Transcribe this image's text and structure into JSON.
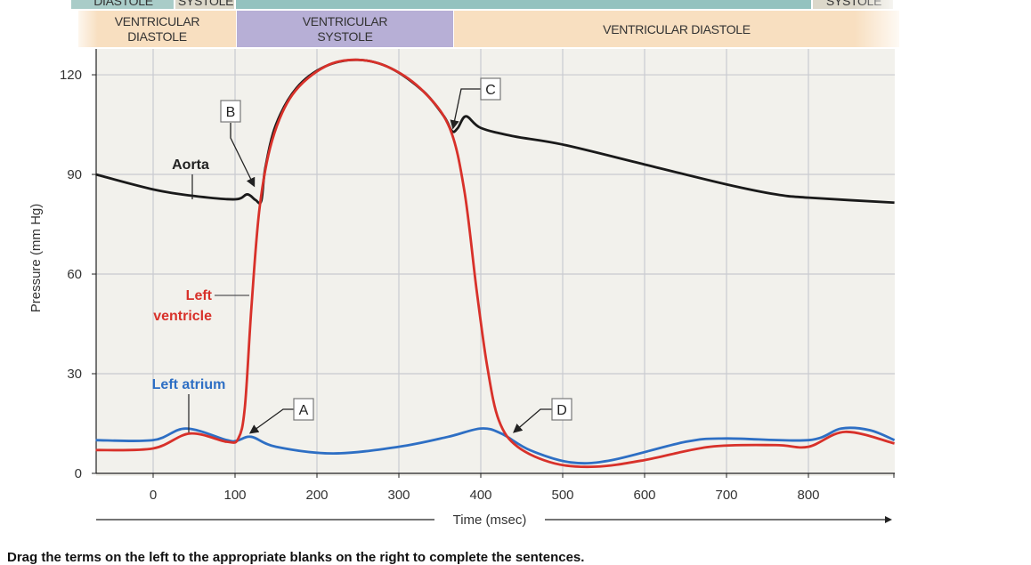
{
  "phases": {
    "atrial": [
      {
        "label": "DIASTOLE",
        "color": "#a9ccc8"
      },
      {
        "label": "SYSTOLE",
        "color": "#dcd8ca"
      },
      {
        "label": "",
        "color": "#94c2bf"
      },
      {
        "label": "SYSTOLE",
        "color": "#dcd8ca"
      }
    ],
    "ventricular": [
      {
        "line1": "VENTRICULAR",
        "line2": "DIASTOLE",
        "color": "#f8dfc0"
      },
      {
        "line1": "VENTRICULAR",
        "line2": "SYSTOLE",
        "color": "#b7afd6"
      },
      {
        "line1": "VENTRICULAR DIASTOLE",
        "line2": "",
        "color": "#f8dfc0"
      }
    ]
  },
  "chart_data": {
    "type": "line",
    "xlabel": "Time (msec)",
    "ylabel": "Pressure (mm Hg)",
    "xlim": [
      -70,
      905
    ],
    "ylim": [
      0,
      128
    ],
    "xticks": [
      0,
      100,
      200,
      300,
      400,
      500,
      600,
      700,
      800
    ],
    "yticks": [
      0,
      30,
      60,
      90,
      120
    ],
    "grid": true,
    "series": [
      {
        "name": "Aorta",
        "color": "#1a1a1a",
        "label_lines": [
          "Aorta"
        ],
        "points": [
          [
            -70,
            90
          ],
          [
            0,
            85.5
          ],
          [
            50,
            83.5
          ],
          [
            100,
            82.5
          ],
          [
            115,
            84
          ],
          [
            125,
            82.3
          ],
          [
            132,
            82
          ],
          [
            137,
            92
          ],
          [
            150,
            105
          ],
          [
            175,
            116
          ],
          [
            210,
            122.5
          ],
          [
            250,
            124.5
          ],
          [
            290,
            122
          ],
          [
            330,
            115
          ],
          [
            355,
            107.5
          ],
          [
            365,
            103
          ],
          [
            372,
            104
          ],
          [
            382,
            107.5
          ],
          [
            400,
            104
          ],
          [
            440,
            101.5
          ],
          [
            500,
            99
          ],
          [
            600,
            93
          ],
          [
            700,
            87
          ],
          [
            760,
            84
          ],
          [
            800,
            83
          ],
          [
            905,
            81.5
          ]
        ]
      },
      {
        "name": "Left ventricle",
        "color": "#d8312a",
        "label_lines": [
          "Left",
          "ventricle"
        ],
        "points": [
          [
            -70,
            7
          ],
          [
            0,
            7.5
          ],
          [
            45,
            12
          ],
          [
            90,
            9.5
          ],
          [
            104,
            10.5
          ],
          [
            112,
            20
          ],
          [
            120,
            50
          ],
          [
            130,
            80
          ],
          [
            145,
            100
          ],
          [
            170,
            114
          ],
          [
            210,
            122.5
          ],
          [
            250,
            124.5
          ],
          [
            290,
            122
          ],
          [
            330,
            115
          ],
          [
            362,
            104
          ],
          [
            380,
            85
          ],
          [
            395,
            55
          ],
          [
            408,
            32
          ],
          [
            422,
            16
          ],
          [
            445,
            8
          ],
          [
            490,
            3
          ],
          [
            540,
            2
          ],
          [
            600,
            4
          ],
          [
            680,
            8
          ],
          [
            760,
            8.5
          ],
          [
            800,
            8
          ],
          [
            845,
            12.5
          ],
          [
            905,
            9
          ]
        ]
      },
      {
        "name": "Left atrium",
        "color": "#2e6fc4",
        "label_lines": [
          "Left atrium"
        ],
        "points": [
          [
            -70,
            10
          ],
          [
            0,
            10
          ],
          [
            40,
            13.5
          ],
          [
            90,
            10
          ],
          [
            102,
            9.8
          ],
          [
            120,
            11
          ],
          [
            150,
            8
          ],
          [
            220,
            6
          ],
          [
            300,
            8
          ],
          [
            360,
            11
          ],
          [
            400,
            13.5
          ],
          [
            425,
            12
          ],
          [
            460,
            7
          ],
          [
            510,
            3.3
          ],
          [
            560,
            4
          ],
          [
            650,
            9.5
          ],
          [
            700,
            10.5
          ],
          [
            800,
            10
          ],
          [
            840,
            13.5
          ],
          [
            875,
            13
          ],
          [
            905,
            10
          ]
        ]
      }
    ],
    "annotations": [
      {
        "label": "A",
        "target": [
          112,
          11.5
        ]
      },
      {
        "label": "B",
        "target": [
          122,
          83
        ]
      },
      {
        "label": "C",
        "target": [
          368,
          103.5
        ]
      },
      {
        "label": "D",
        "target": [
          432,
          12
        ]
      }
    ]
  },
  "footer": "Drag the terms on the left to the appropriate blanks on the right to complete the sentences."
}
